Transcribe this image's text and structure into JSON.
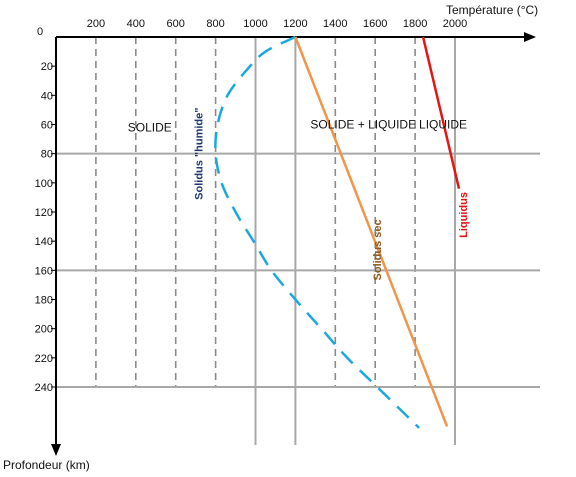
{
  "chart_data": {
    "type": "line",
    "xlabel": "Température (°C)",
    "ylabel": "Profondeur  (km)",
    "x_origin_label": "0",
    "x_ticks": [
      200,
      400,
      600,
      800,
      1000,
      1200,
      1400,
      1600,
      1800,
      2000
    ],
    "y_ticks": [
      20,
      40,
      60,
      80,
      100,
      120,
      140,
      160,
      180,
      200,
      220,
      240
    ],
    "xlim": [
      0,
      2000
    ],
    "ylim": [
      0,
      240
    ],
    "y_inverted": true,
    "grid": {
      "x_solid": [
        1000,
        1200,
        2000
      ],
      "x_dashed": [
        200,
        400,
        600,
        800,
        1400,
        1600,
        1800
      ],
      "y_solid": [
        80,
        160,
        240
      ]
    },
    "zones": [
      {
        "label": "SOLIDE",
        "x": 470,
        "y": 62
      },
      {
        "label": "SOLIDE + LIQUIDE",
        "x": 1540,
        "y": 60
      },
      {
        "label": "LIQUIDE",
        "x": 1940,
        "y": 60
      }
    ],
    "series": [
      {
        "name": "Solidus \"humide\"",
        "color": "#1aa8df",
        "style": "dashed",
        "points": [
          [
            1200,
            0
          ],
          [
            1050,
            10
          ],
          [
            960,
            22
          ],
          [
            860,
            40
          ],
          [
            810,
            60
          ],
          [
            800,
            80
          ],
          [
            830,
            100
          ],
          [
            900,
            120
          ],
          [
            990,
            140
          ],
          [
            1080,
            160
          ],
          [
            1200,
            180
          ],
          [
            1330,
            200
          ],
          [
            1460,
            220
          ],
          [
            1610,
            240
          ],
          [
            1820,
            268
          ]
        ]
      },
      {
        "name": "Solidus sec",
        "color": "#f0954a",
        "style": "solid",
        "points": [
          [
            1200,
            0
          ],
          [
            1960,
            267
          ]
        ]
      },
      {
        "name": "Liquidus",
        "color": "#e31515",
        "style": "solid",
        "points": [
          [
            1840,
            0
          ],
          [
            2020,
            104
          ]
        ]
      }
    ],
    "curve_labels": [
      {
        "series": 0,
        "text": "Solidus \"humide\"",
        "x": 735,
        "y": 80
      },
      {
        "series": 1,
        "text": "Solidus sec",
        "x": 1630,
        "y": 146
      },
      {
        "series": 2,
        "text": "Liquidus",
        "x": 2060,
        "y": 122
      }
    ]
  }
}
